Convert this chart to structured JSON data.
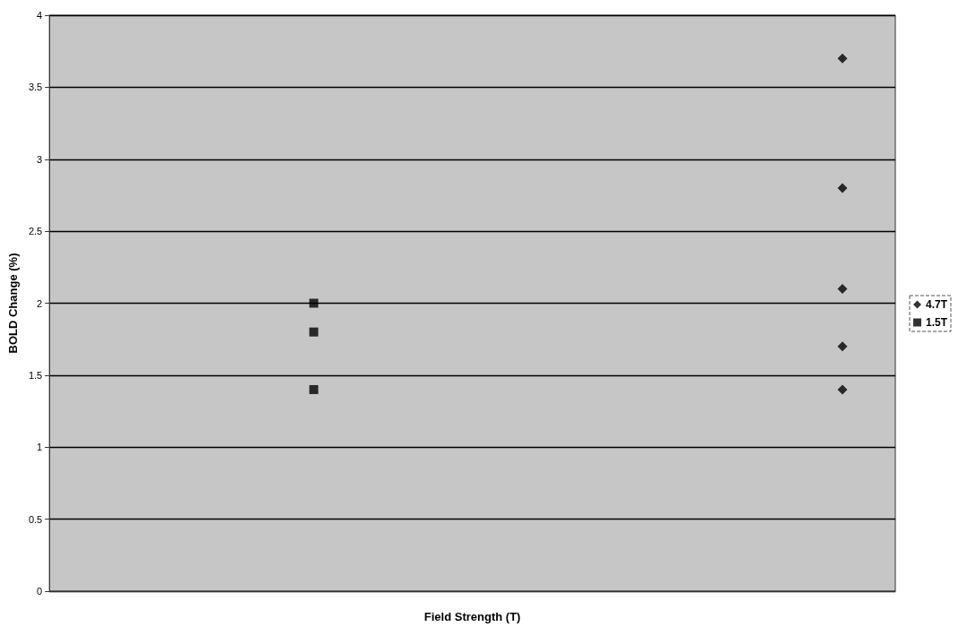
{
  "chart_data": {
    "type": "scatter",
    "xlabel": "Field Strength (T)",
    "ylabel": "BOLD Change (%)",
    "categories": [
      null,
      null,
      null,
      null,
      null,
      null,
      null,
      null
    ],
    "series": [
      {
        "name": "4.7T",
        "color": "#000000",
        "marker": "diamond",
        "values": [
          null,
          null,
          null,
          null,
          null,
          null,
          null,
          3.7
        ]
      },
      {
        "color": "#000000",
        "marker": "diamond",
        "values": [
          null,
          null,
          null,
          null,
          null,
          null,
          null,
          2.8
        ]
      },
      {
        "color": "#000000",
        "marker": "diamond",
        "values": [
          null,
          null,
          null,
          null,
          null,
          null,
          null,
          2.1
        ]
      },
      {
        "color": "#000000",
        "marker": "diamond",
        "values": [
          null,
          null,
          null,
          null,
          null,
          null,
          null,
          1.7
        ]
      },
      {
        "color": "#000000",
        "marker": "diamond",
        "values": [
          null,
          null,
          null,
          null,
          null,
          null,
          null,
          1.4
        ]
      },
      {
        "name": "1.5T",
        "color": "#000000",
        "marker": "square",
        "values": [
          null,
          null,
          2.0,
          null,
          null,
          null,
          null,
          null
        ]
      },
      {
        "color": "#000000",
        "marker": "square",
        "values": [
          null,
          null,
          1.8,
          null,
          null,
          null,
          null,
          null
        ]
      },
      {
        "color": "#000000",
        "marker": "square",
        "values": [
          null,
          null,
          1.4,
          null,
          null,
          null,
          null,
          null
        ]
      }
    ],
    "ylim": [
      0,
      4
    ],
    "yticks": [
      0,
      0.5,
      1,
      1.5,
      2,
      2.5,
      3,
      3.5,
      4
    ],
    "grid": "y",
    "legend": "right",
    "tick_labels": "y"
  }
}
